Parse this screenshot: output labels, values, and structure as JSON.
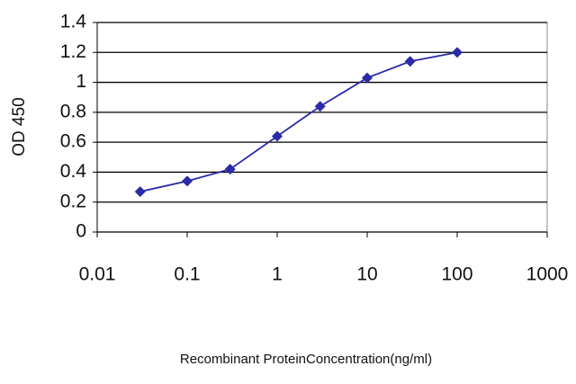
{
  "chart_data": {
    "type": "line",
    "x_label": "Recombinant ProteinConcentration(ng/ml)",
    "y_label": "OD 450",
    "x": [
      0.03,
      0.1,
      0.3,
      1,
      3,
      10,
      30,
      100
    ],
    "values": [
      0.27,
      0.34,
      0.42,
      0.64,
      0.84,
      1.03,
      1.14,
      1.2
    ],
    "color": "#2b2ba8",
    "xscale": "log",
    "xlim": [
      0.01,
      1000
    ],
    "xticks": [
      0.01,
      0.1,
      1,
      10,
      100,
      1000
    ],
    "ylim": [
      0,
      1.4
    ],
    "yticks": [
      0,
      0.2,
      0.4,
      0.6,
      0.8,
      1,
      1.2,
      1.4
    ],
    "grid": true
  }
}
